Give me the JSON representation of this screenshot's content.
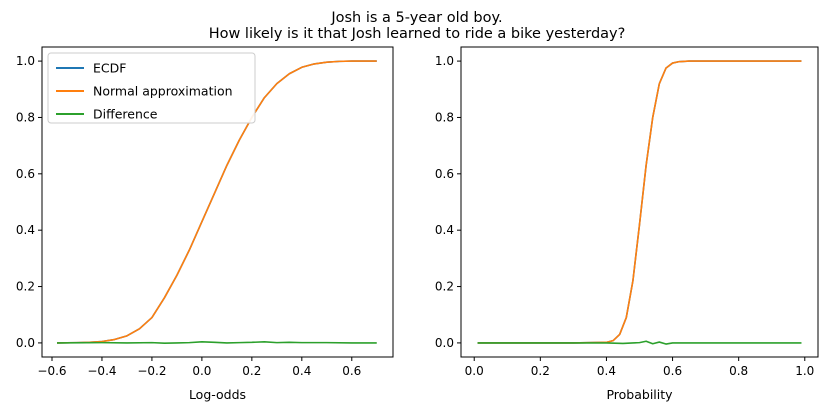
{
  "figure": {
    "title_line1": "Josh is a 5-year old boy.",
    "title_line2": "How likely is it that Josh learned to ride a bike yesterday?"
  },
  "colors": {
    "ecdf": "#1f77b4",
    "normal": "#ff7f0e",
    "difference": "#2ca02c"
  },
  "chart_data": [
    {
      "type": "line",
      "xlabel": "Log-odds",
      "ylabel": "",
      "xlim": [
        -0.64,
        0.765
      ],
      "ylim": [
        -0.05,
        1.05
      ],
      "xticks": [
        -0.6,
        -0.4,
        -0.2,
        0.0,
        0.2,
        0.4,
        0.6
      ],
      "xtick_labels": [
        "−0.6",
        "−0.4",
        "−0.2",
        "0.0",
        "0.2",
        "0.4",
        "0.6"
      ],
      "yticks": [
        0.0,
        0.2,
        0.4,
        0.6,
        0.8,
        1.0
      ],
      "ytick_labels": [
        "0.0",
        "0.2",
        "0.4",
        "0.6",
        "0.8",
        "1.0"
      ],
      "grid": false,
      "legend_position": "top-left",
      "series": [
        {
          "name": "ECDF",
          "x": [
            -0.58,
            -0.5,
            -0.45,
            -0.4,
            -0.35,
            -0.3,
            -0.25,
            -0.2,
            -0.15,
            -0.1,
            -0.05,
            0.0,
            0.05,
            0.1,
            0.15,
            0.2,
            0.25,
            0.3,
            0.35,
            0.4,
            0.45,
            0.5,
            0.55,
            0.6,
            0.65,
            0.7
          ],
          "y": [
            0.0,
            0.001,
            0.002,
            0.005,
            0.012,
            0.025,
            0.05,
            0.09,
            0.16,
            0.24,
            0.33,
            0.43,
            0.53,
            0.63,
            0.72,
            0.8,
            0.87,
            0.92,
            0.955,
            0.978,
            0.99,
            0.996,
            0.999,
            1.0,
            1.0,
            1.0
          ]
        },
        {
          "name": "Normal approximation",
          "x": [
            -0.58,
            -0.5,
            -0.45,
            -0.4,
            -0.35,
            -0.3,
            -0.25,
            -0.2,
            -0.15,
            -0.1,
            -0.05,
            0.0,
            0.05,
            0.1,
            0.15,
            0.2,
            0.25,
            0.3,
            0.35,
            0.4,
            0.45,
            0.5,
            0.55,
            0.6,
            0.65,
            0.7
          ],
          "y": [
            0.0,
            0.001,
            0.002,
            0.005,
            0.012,
            0.025,
            0.05,
            0.09,
            0.16,
            0.24,
            0.33,
            0.43,
            0.53,
            0.63,
            0.72,
            0.8,
            0.87,
            0.92,
            0.955,
            0.978,
            0.99,
            0.996,
            0.999,
            1.0,
            1.0,
            1.0
          ]
        },
        {
          "name": "Difference",
          "x": [
            -0.58,
            -0.4,
            -0.3,
            -0.2,
            -0.15,
            -0.1,
            -0.05,
            0.0,
            0.05,
            0.1,
            0.15,
            0.2,
            0.25,
            0.3,
            0.35,
            0.4,
            0.5,
            0.6,
            0.7
          ],
          "y": [
            0.0,
            0.001,
            0.0,
            0.001,
            -0.001,
            0.0,
            0.001,
            0.004,
            0.002,
            0.0,
            0.001,
            0.002,
            0.004,
            0.001,
            0.002,
            0.001,
            0.001,
            0.0,
            0.0
          ]
        }
      ]
    },
    {
      "type": "line",
      "xlabel": "Probability",
      "ylabel": "",
      "xlim": [
        -0.04,
        1.04
      ],
      "ylim": [
        -0.05,
        1.05
      ],
      "xticks": [
        0.0,
        0.2,
        0.4,
        0.6,
        0.8,
        1.0
      ],
      "xtick_labels": [
        "0.0",
        "0.2",
        "0.4",
        "0.6",
        "0.8",
        "1.0"
      ],
      "yticks": [
        0.0,
        0.2,
        0.4,
        0.6,
        0.8,
        1.0
      ],
      "ytick_labels": [
        "0.0",
        "0.2",
        "0.4",
        "0.6",
        "0.8",
        "1.0"
      ],
      "grid": false,
      "series": [
        {
          "name": "ECDF",
          "x": [
            0.01,
            0.3,
            0.4,
            0.42,
            0.44,
            0.46,
            0.48,
            0.5,
            0.52,
            0.54,
            0.56,
            0.58,
            0.6,
            0.62,
            0.65,
            0.7,
            0.99
          ],
          "y": [
            0.0,
            0.0,
            0.002,
            0.008,
            0.03,
            0.09,
            0.22,
            0.42,
            0.63,
            0.8,
            0.92,
            0.975,
            0.993,
            0.998,
            1.0,
            1.0,
            1.0
          ]
        },
        {
          "name": "Normal approximation",
          "x": [
            0.01,
            0.3,
            0.4,
            0.42,
            0.44,
            0.46,
            0.48,
            0.5,
            0.52,
            0.54,
            0.56,
            0.58,
            0.6,
            0.62,
            0.65,
            0.7,
            0.99
          ],
          "y": [
            0.0,
            0.0,
            0.002,
            0.008,
            0.03,
            0.09,
            0.22,
            0.42,
            0.63,
            0.8,
            0.92,
            0.975,
            0.993,
            0.998,
            1.0,
            1.0,
            1.0
          ]
        },
        {
          "name": "Difference",
          "x": [
            0.01,
            0.4,
            0.45,
            0.48,
            0.5,
            0.52,
            0.54,
            0.56,
            0.58,
            0.6,
            0.99
          ],
          "y": [
            0.0,
            0.0,
            -0.002,
            0.0,
            0.001,
            0.006,
            -0.003,
            0.003,
            -0.004,
            0.0,
            0.0
          ]
        }
      ]
    }
  ]
}
